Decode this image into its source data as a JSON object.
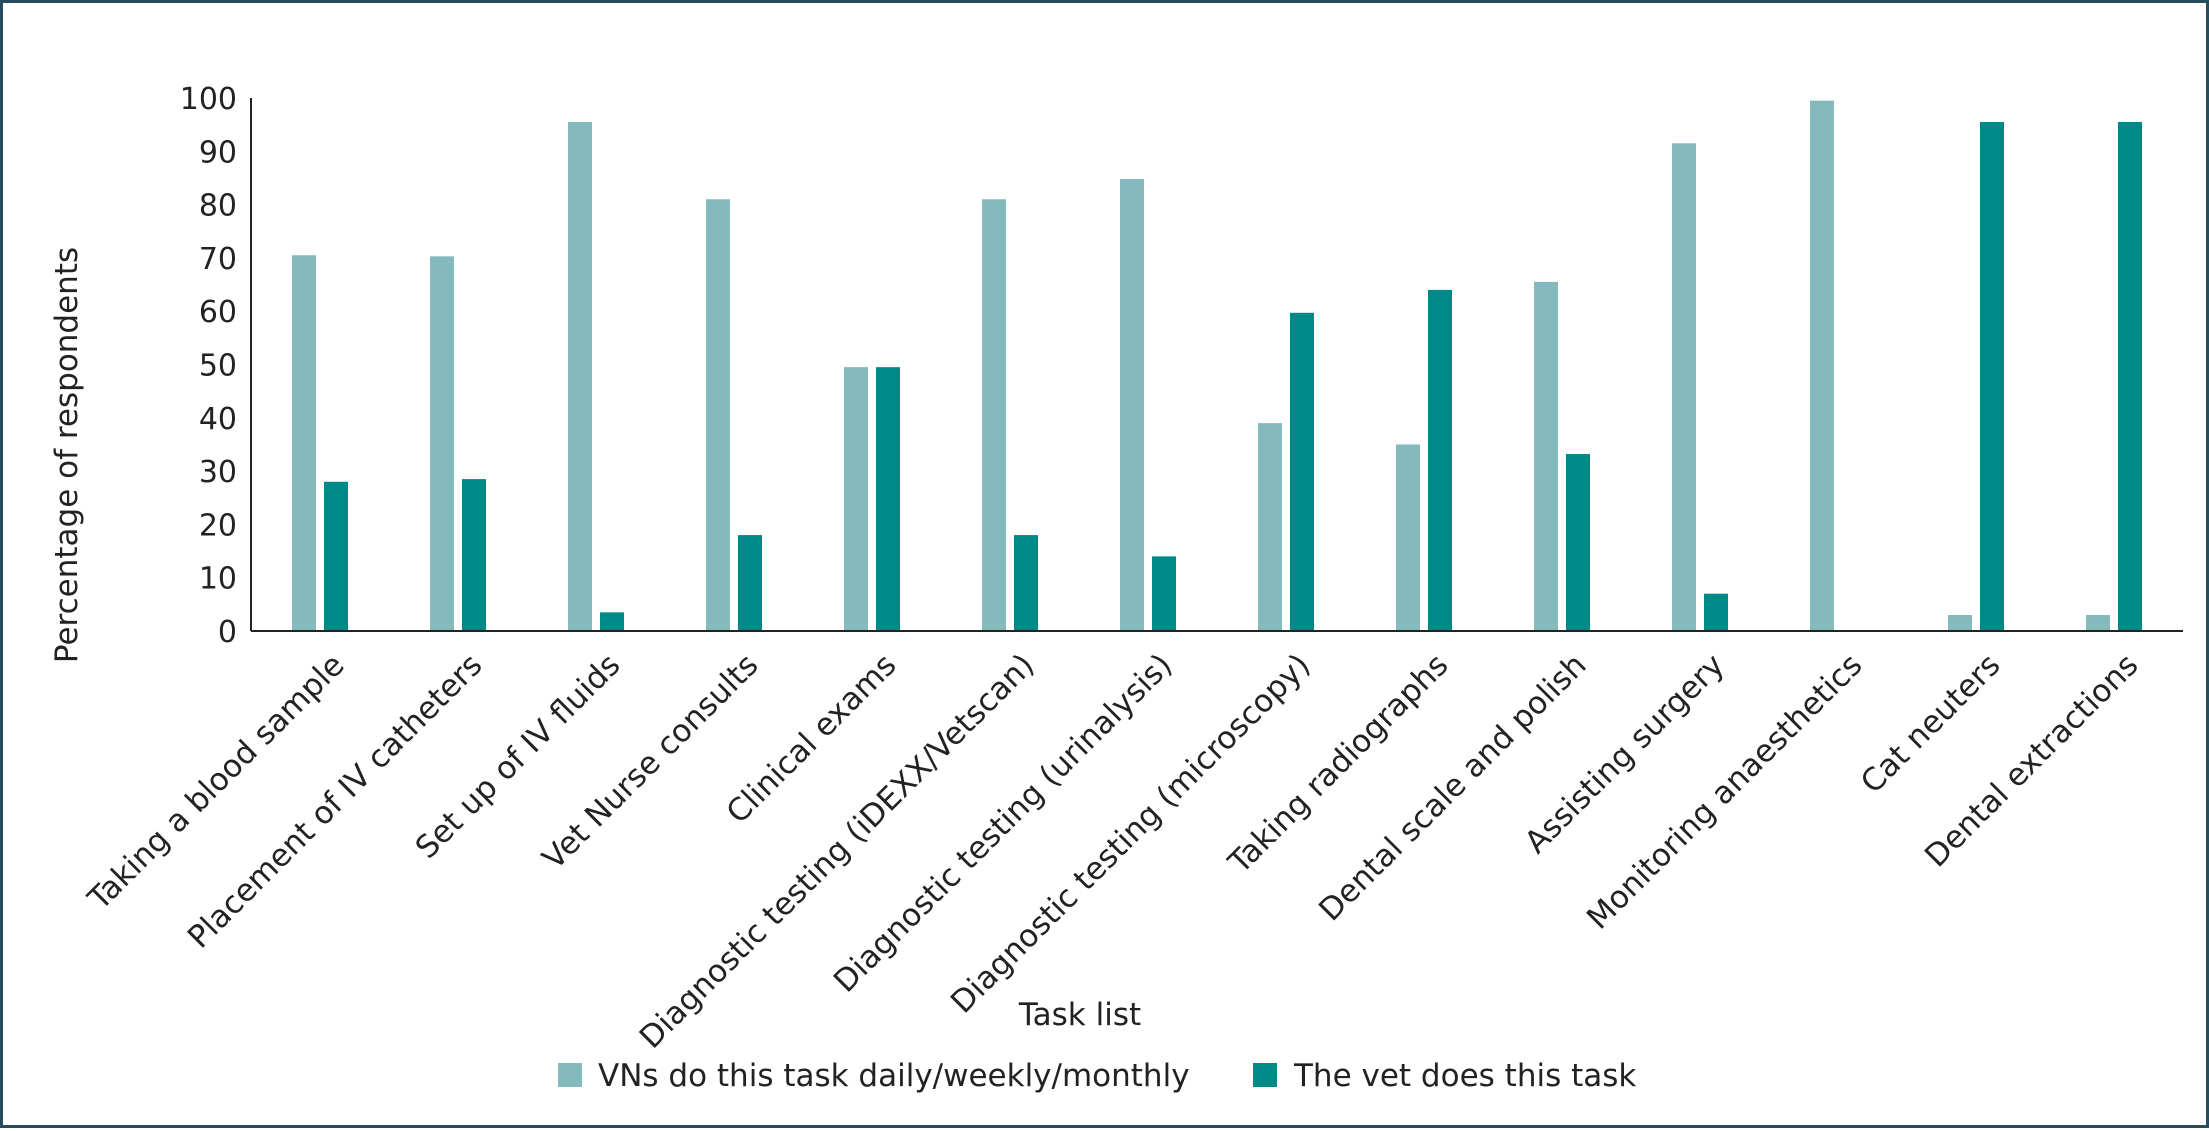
{
  "chart_data": {
    "type": "bar",
    "title": "",
    "xlabel": "Task list",
    "ylabel": "Percentage of respondents",
    "ylim": [
      0,
      100
    ],
    "yticks": [
      0,
      10,
      20,
      30,
      40,
      50,
      60,
      70,
      80,
      90,
      100
    ],
    "grid": false,
    "legend_position": "bottom",
    "categories": [
      "Taking a blood sample",
      "Placement of IV catheters",
      "Set up of IV fluids",
      "Vet Nurse consults",
      "Clinical exams",
      "Diagnostic testing (iDEXX/Vetscan)",
      "Diagnostic testing (urinalysis)",
      "Diagnostic testing (microscopy)",
      "Taking radiographs",
      "Dental scale and polish",
      "Assisting surgery",
      "Monitoring anaesthetics",
      "Cat neuters",
      "Dental extractions"
    ],
    "series": [
      {
        "name": "VNs do this task daily/weekly/monthly",
        "color": "#84b9be",
        "values": [
          70.5,
          70.3,
          95.5,
          81,
          49.5,
          81,
          84.8,
          39,
          35,
          65.5,
          91.5,
          99.5,
          3,
          3
        ]
      },
      {
        "name": "The vet does this task",
        "color": "#008a87",
        "values": [
          28,
          28.5,
          3.5,
          18,
          49.5,
          18,
          14,
          59.7,
          64,
          33.2,
          7,
          0,
          95.5,
          95.5
        ]
      }
    ]
  }
}
